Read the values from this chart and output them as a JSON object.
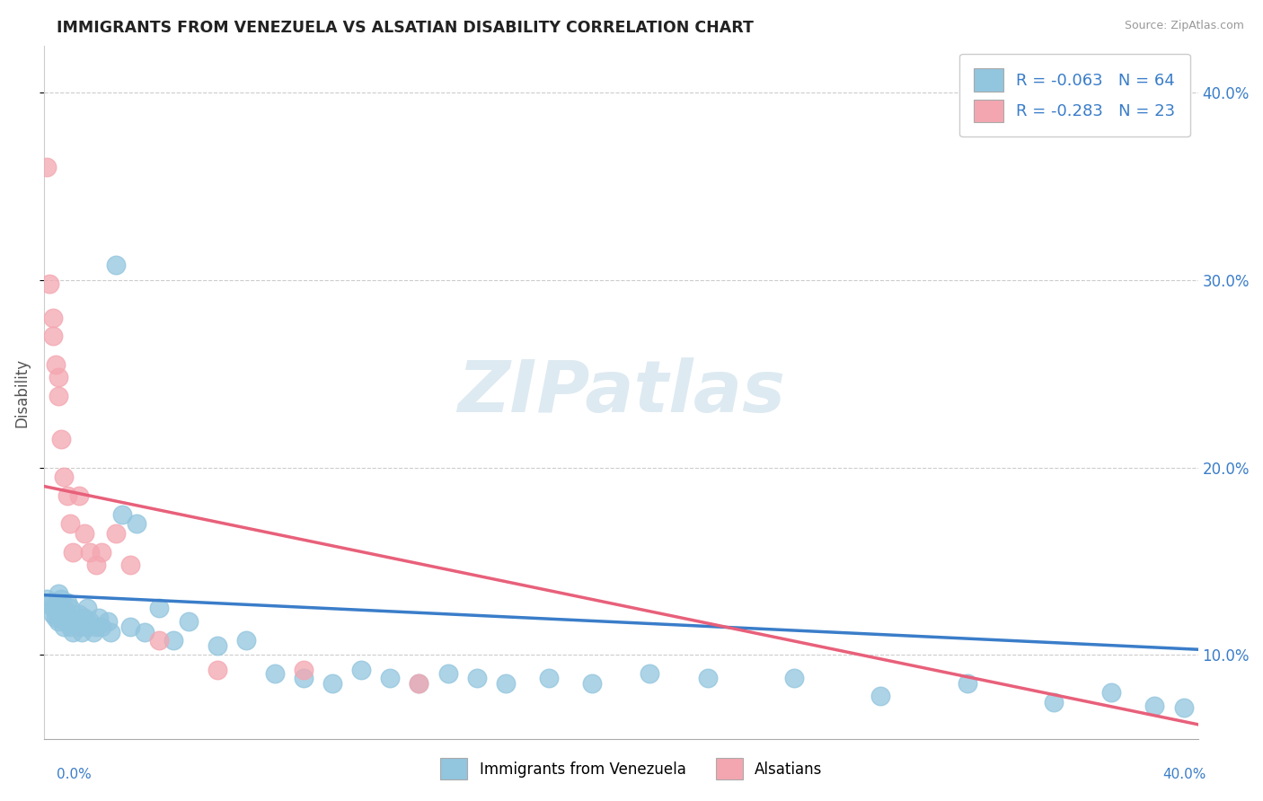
{
  "title": "IMMIGRANTS FROM VENEZUELA VS ALSATIAN DISABILITY CORRELATION CHART",
  "source": "Source: ZipAtlas.com",
  "ylabel": "Disability",
  "xlim": [
    0.0,
    0.4
  ],
  "ylim": [
    0.055,
    0.425
  ],
  "yticks": [
    0.1,
    0.2,
    0.3,
    0.4
  ],
  "ytick_labels": [
    "10.0%",
    "20.0%",
    "30.0%",
    "40.0%"
  ],
  "blue_R": -0.063,
  "blue_N": 64,
  "pink_R": -0.283,
  "pink_N": 23,
  "blue_color": "#92C5DE",
  "pink_color": "#F4A6B0",
  "blue_line_color": "#3A7DC9",
  "pink_line_color": "#E8607A",
  "watermark_color": "#D8E8F0",
  "watermark": "ZIPatlas",
  "legend_label_blue": "Immigrants from Venezuela",
  "legend_label_pink": "Alsatians",
  "blue_scatter_x": [
    0.001,
    0.002,
    0.003,
    0.003,
    0.004,
    0.004,
    0.005,
    0.005,
    0.006,
    0.006,
    0.007,
    0.007,
    0.007,
    0.008,
    0.008,
    0.009,
    0.009,
    0.01,
    0.01,
    0.011,
    0.012,
    0.012,
    0.013,
    0.013,
    0.014,
    0.015,
    0.015,
    0.016,
    0.017,
    0.018,
    0.019,
    0.02,
    0.022,
    0.023,
    0.025,
    0.027,
    0.03,
    0.032,
    0.035,
    0.04,
    0.045,
    0.05,
    0.06,
    0.07,
    0.08,
    0.09,
    0.1,
    0.11,
    0.12,
    0.13,
    0.14,
    0.15,
    0.16,
    0.175,
    0.19,
    0.21,
    0.23,
    0.26,
    0.29,
    0.32,
    0.35,
    0.37,
    0.385,
    0.395
  ],
  "blue_scatter_y": [
    0.13,
    0.128,
    0.125,
    0.122,
    0.127,
    0.12,
    0.133,
    0.118,
    0.13,
    0.122,
    0.125,
    0.12,
    0.115,
    0.128,
    0.118,
    0.125,
    0.115,
    0.12,
    0.112,
    0.118,
    0.122,
    0.115,
    0.118,
    0.112,
    0.12,
    0.125,
    0.115,
    0.118,
    0.112,
    0.115,
    0.12,
    0.115,
    0.118,
    0.112,
    0.308,
    0.175,
    0.115,
    0.17,
    0.112,
    0.125,
    0.108,
    0.118,
    0.105,
    0.108,
    0.09,
    0.088,
    0.085,
    0.092,
    0.088,
    0.085,
    0.09,
    0.088,
    0.085,
    0.088,
    0.085,
    0.09,
    0.088,
    0.088,
    0.078,
    0.085,
    0.075,
    0.08,
    0.073,
    0.072
  ],
  "pink_scatter_x": [
    0.001,
    0.002,
    0.003,
    0.003,
    0.004,
    0.005,
    0.005,
    0.006,
    0.007,
    0.008,
    0.009,
    0.01,
    0.012,
    0.014,
    0.016,
    0.018,
    0.02,
    0.025,
    0.03,
    0.04,
    0.06,
    0.09,
    0.13
  ],
  "pink_scatter_y": [
    0.36,
    0.298,
    0.28,
    0.27,
    0.255,
    0.248,
    0.238,
    0.215,
    0.195,
    0.185,
    0.17,
    0.155,
    0.185,
    0.165,
    0.155,
    0.148,
    0.155,
    0.165,
    0.148,
    0.108,
    0.092,
    0.092,
    0.085
  ],
  "blue_trend_x": [
    0.0,
    0.4
  ],
  "blue_trend_y": [
    0.132,
    0.103
  ],
  "pink_trend_x": [
    0.0,
    0.4
  ],
  "pink_trend_y": [
    0.19,
    0.063
  ]
}
